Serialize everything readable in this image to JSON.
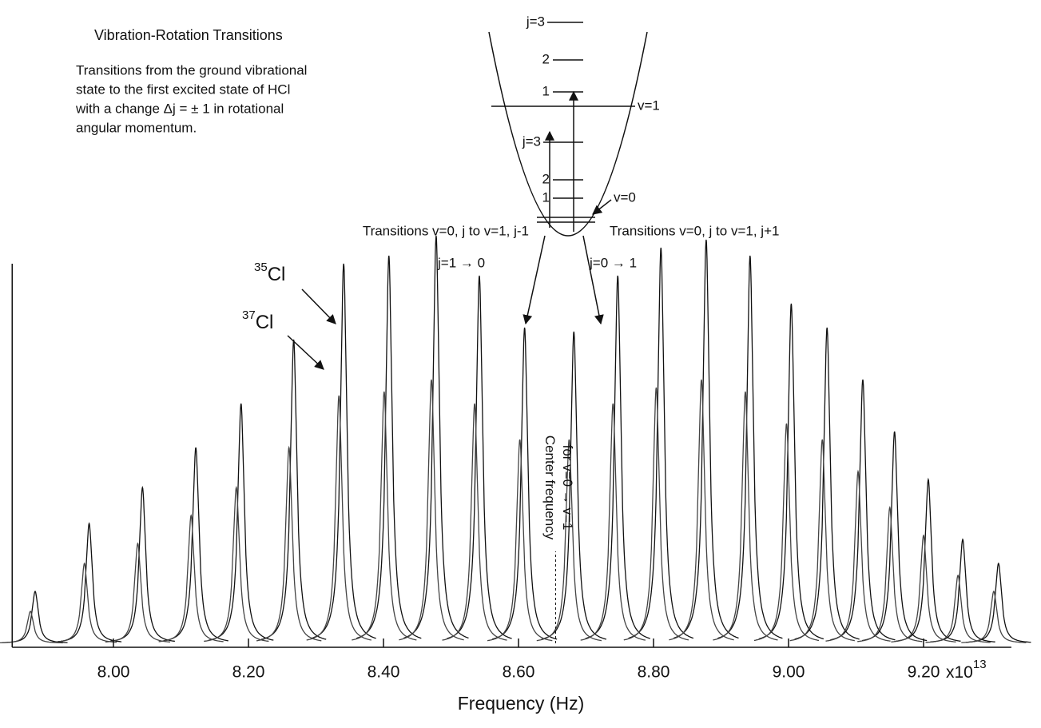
{
  "title": "Vibration-Rotation Transitions",
  "description": [
    "Transitions from the ground vibrational",
    "state to the first excited state of HCl",
    "with a change Δj = ± 1  in rotational",
    "angular momentum."
  ],
  "diagram": {
    "upper_levels": [
      "j=3",
      "2",
      "1"
    ],
    "upper_state": "v=1",
    "lower_levels": [
      "j=3",
      "2",
      "1"
    ],
    "lower_state": "v=0"
  },
  "branch_labels": [
    "Transitions v=0, j to v=1, j-1",
    "Transitions v=0, j to v=1, j+1"
  ],
  "transition_labels": [
    "j=1 → 0",
    "j=0 → 1"
  ],
  "chart_data": {
    "type": "spectrum",
    "x_label": "Frequency (Hz)",
    "x_multiplier": {
      "base": "x10",
      "exponent": "13"
    },
    "xlim": [
      7.85,
      9.33
    ],
    "xticks": [
      {
        "value": 8,
        "label": "8.00"
      },
      {
        "value": 8.2,
        "label": "8.20"
      },
      {
        "value": 8.4,
        "label": "8.40"
      },
      {
        "value": 8.6,
        "label": "8.60"
      },
      {
        "value": 8.8,
        "label": "8.80"
      },
      {
        "value": 9,
        "label": "9.00"
      },
      {
        "value": 9.2,
        "label": "9.20"
      }
    ],
    "ylim": [
      0,
      105
    ],
    "center_frequency": 8.655,
    "center_label": [
      "Center frequency",
      "for v=0 → v=1"
    ],
    "series": [
      {
        "mass": "35",
        "symbol": "Cl",
        "color": "#111111",
        "x": [
          7.884,
          7.964,
          8.043,
          8.122,
          8.189,
          8.267,
          8.341,
          8.408,
          8.478,
          8.542,
          8.609,
          8.682,
          8.747,
          8.811,
          8.878,
          8.943,
          9.004,
          9.057,
          9.11,
          9.157,
          9.207,
          9.258,
          9.311
        ],
        "values": [
          13,
          30,
          39,
          49,
          60,
          76,
          95,
          97,
          102,
          92,
          79,
          78,
          92,
          99,
          101,
          97,
          85,
          79,
          66,
          53,
          41,
          26,
          20
        ]
      },
      {
        "mass": "37",
        "symbol": "Cl",
        "color": "#444444",
        "x": [
          7.877,
          7.957,
          8.036,
          8.115,
          8.182,
          8.26,
          8.334,
          8.401,
          8.471,
          8.535,
          8.602,
          8.675,
          8.74,
          8.804,
          8.871,
          8.936,
          8.997,
          9.05,
          9.103,
          9.15,
          9.2,
          9.251,
          9.304
        ],
        "values": [
          8,
          20,
          25,
          32,
          39,
          49,
          62,
          63,
          66,
          60,
          51,
          51,
          60,
          64,
          66,
          63,
          55,
          51,
          43,
          34,
          27,
          17,
          13
        ]
      }
    ]
  }
}
